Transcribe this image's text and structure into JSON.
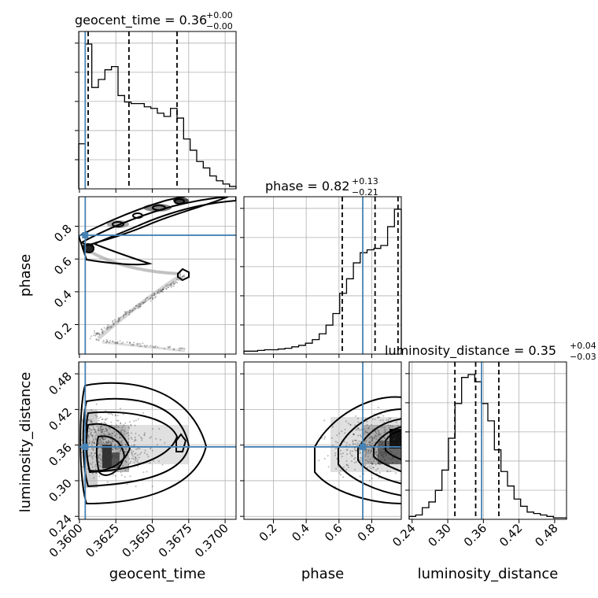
{
  "chart_data": {
    "type": "corner",
    "parameters": [
      "geocent_time",
      "phase",
      "luminosity_distance"
    ],
    "truths": {
      "geocent_time": 0.3604,
      "phase": 0.745,
      "luminosity_distance": 0.357
    },
    "titles": [
      {
        "param": "geocent_time",
        "prefix": "geocent_time = 0.36",
        "plus": "+0.00",
        "minus": "−0.00"
      },
      {
        "param": "phase",
        "prefix": "phase = 0.82",
        "plus": "+0.13",
        "minus": "−0.21"
      },
      {
        "param": "luminosity_distance",
        "prefix": "luminosity_distance = 0.35",
        "plus": "+0.04",
        "minus": "−0.03"
      }
    ],
    "ranges": {
      "geocent_time": [
        0.35995,
        0.37075
      ],
      "phase": [
        0.02,
        0.98
      ],
      "luminosity_distance": [
        0.235,
        0.5
      ]
    },
    "ticks": {
      "geocent_time": [
        "0.3600",
        "0.3625",
        "0.3650",
        "0.3675",
        "0.3700"
      ],
      "phase": [
        "0.2",
        "0.4",
        "0.6",
        "0.8"
      ],
      "luminosity_distance": [
        "0.24",
        "0.30",
        "0.36",
        "0.42",
        "0.48"
      ]
    },
    "histograms": {
      "geocent_time": {
        "quantiles": [
          0.3606,
          0.3634,
          0.3667
        ],
        "counts": [
          0.28,
          0.9,
          0.63,
          0.68,
          0.74,
          0.76,
          0.58,
          0.54,
          0.53,
          0.53,
          0.51,
          0.5,
          0.47,
          0.45,
          0.5,
          0.44,
          0.31,
          0.24,
          0.17,
          0.13,
          0.08,
          0.05,
          0.03,
          0.015
        ]
      },
      "phase": {
        "quantiles": [
          0.62,
          0.82,
          0.96
        ],
        "counts": [
          0.02,
          0.02,
          0.025,
          0.03,
          0.03,
          0.035,
          0.04,
          0.05,
          0.06,
          0.075,
          0.1,
          0.14,
          0.2,
          0.28,
          0.42,
          0.52,
          0.63,
          0.7,
          0.72,
          0.73,
          0.75,
          0.88,
          1.0
        ]
      },
      "luminosity_distance": {
        "quantiles": [
          0.312,
          0.347,
          0.386
        ],
        "counts": [
          0.02,
          0.03,
          0.08,
          0.12,
          0.2,
          0.34,
          0.56,
          0.8,
          0.98,
          1.0,
          0.95,
          0.8,
          0.68,
          0.48,
          0.33,
          0.23,
          0.14,
          0.09,
          0.05,
          0.04,
          0.03,
          0.02,
          0.01,
          0.01
        ]
      }
    },
    "grid": true,
    "colors": {
      "truth": "#4682b4",
      "line": "#000000",
      "grid": "#b0b0b0"
    }
  }
}
